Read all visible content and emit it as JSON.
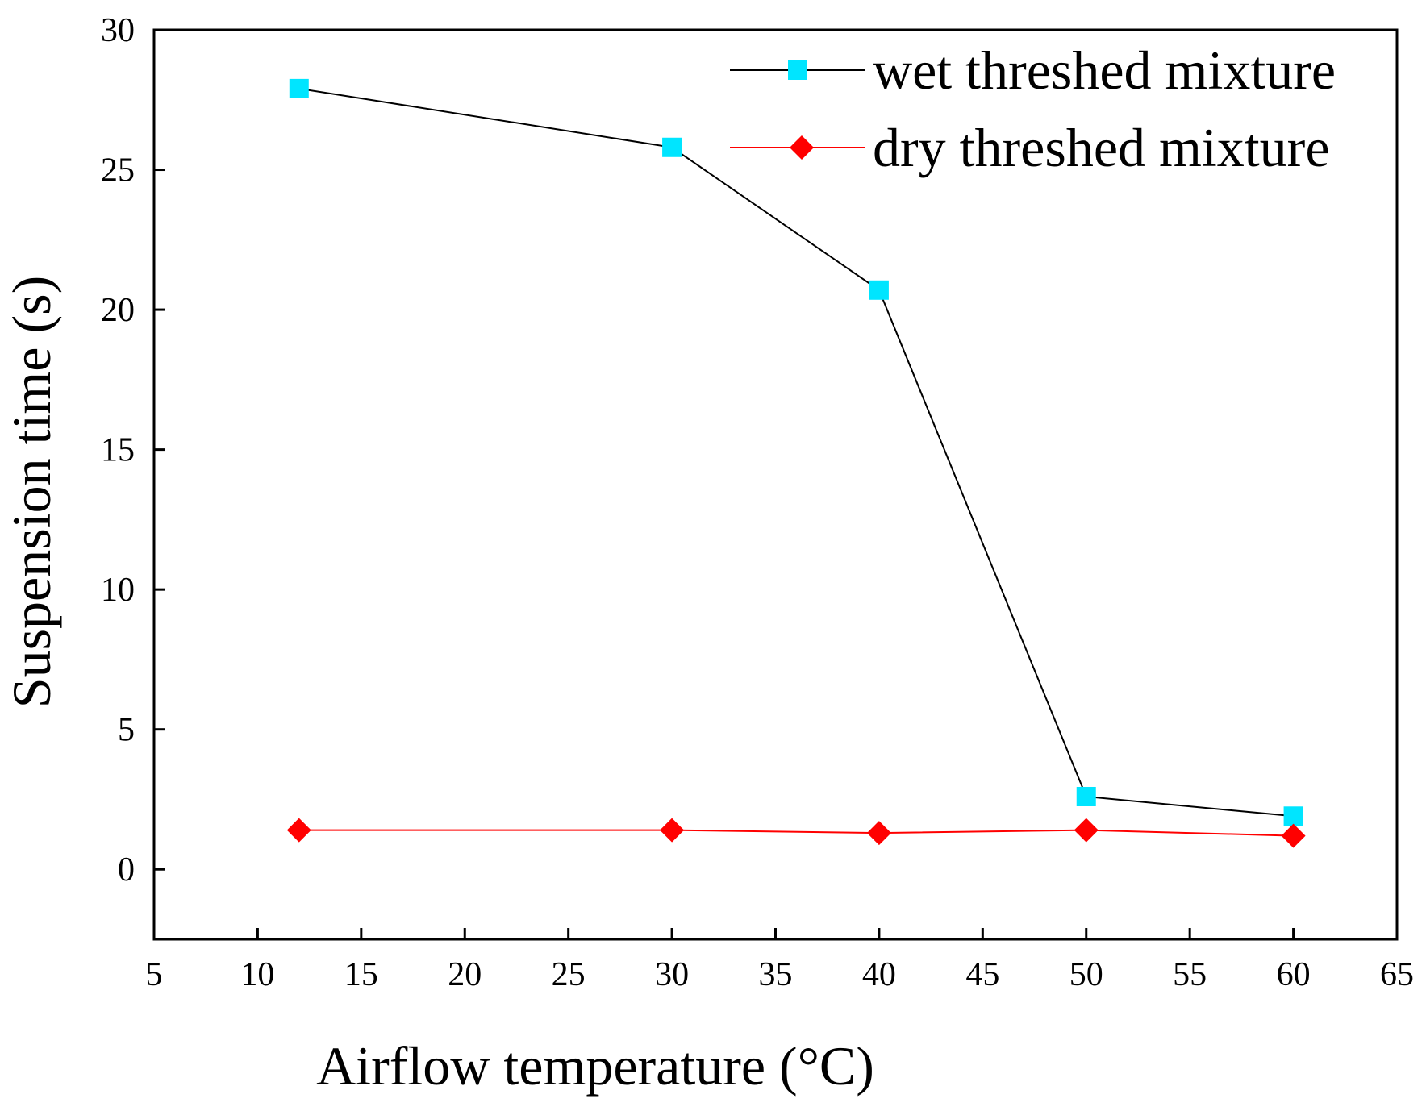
{
  "chart_data": {
    "type": "line",
    "title": "",
    "xlabel": "Airflow temperature (°C)",
    "ylabel": "Suspension time (s)",
    "xlim": [
      5,
      65
    ],
    "ylim": [
      -2.5,
      30
    ],
    "xticks": [
      5,
      10,
      15,
      20,
      25,
      30,
      35,
      40,
      45,
      50,
      55,
      60,
      65
    ],
    "yticks": [
      0,
      5,
      10,
      15,
      20,
      25,
      30
    ],
    "xtick_labels": [
      "5",
      "10",
      "15",
      "20",
      "25",
      "30",
      "35",
      "40",
      "45",
      "50",
      "55",
      "60",
      "65"
    ],
    "ytick_labels": [
      "0",
      "5",
      "10",
      "15",
      "20",
      "25",
      "30"
    ],
    "grid": false,
    "legend_position": "top-right",
    "series": [
      {
        "name": "wet threshed mixture",
        "line_color": "#000000",
        "marker_color": "#00e5ff",
        "marker": "square",
        "x": [
          12,
          30,
          40,
          50,
          60
        ],
        "y": [
          27.9,
          25.8,
          20.7,
          2.6,
          1.9
        ]
      },
      {
        "name": "dry threshed mixture",
        "line_color": "#ff0000",
        "marker_color": "#ff0000",
        "marker": "diamond",
        "x": [
          12,
          30,
          40,
          50,
          60
        ],
        "y": [
          1.4,
          1.4,
          1.3,
          1.4,
          1.2
        ]
      }
    ]
  }
}
